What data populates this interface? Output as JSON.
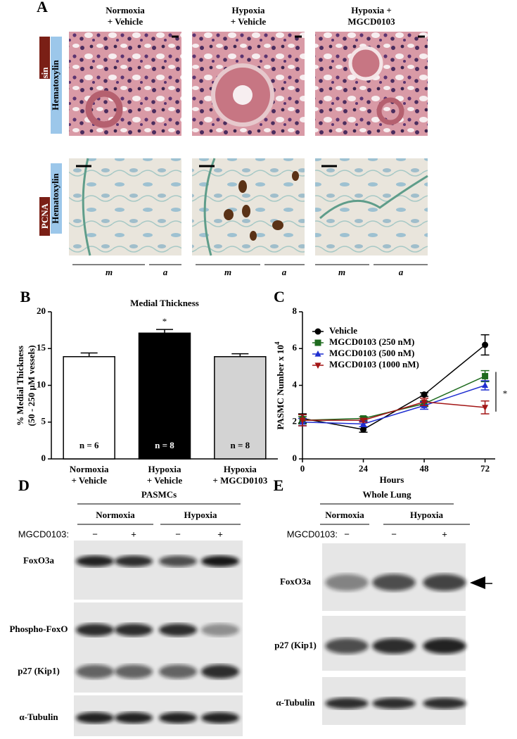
{
  "panel_a": {
    "letter": "A",
    "columns": [
      [
        "Normoxia",
        "+ Vehicle"
      ],
      [
        "Hypoxia",
        "+ Vehicle"
      ],
      [
        "Hypoxia +",
        "MGCD0103"
      ]
    ],
    "row_stains": [
      [
        "Eosin",
        "Hematoxylin"
      ],
      [
        "PCNA",
        "Hematoxylin"
      ]
    ],
    "layer_labels": [
      "m",
      "a"
    ]
  },
  "chart_data": [
    {
      "letter": "B",
      "type": "bar",
      "title": "Medial Thickness",
      "ylabel": [
        "% Medial Thickness",
        "(50 - 250 µM vessels)"
      ],
      "categories": [
        [
          "Normoxia",
          "+ Vehicle"
        ],
        [
          "Hypoxia",
          "+ Vehicle"
        ],
        [
          "Hypoxia",
          "+ MGCD0103"
        ]
      ],
      "values": [
        13.9,
        17.1,
        13.9
      ],
      "errors": [
        0.5,
        0.5,
        0.4
      ],
      "colors": [
        "#ffffff",
        "#000000",
        "#d3d3d3"
      ],
      "n_labels": [
        "n = 6",
        "n = 8",
        "n = 8"
      ],
      "annotation": "*",
      "ylim": [
        0,
        20
      ],
      "yticks": [
        0,
        5,
        10,
        15,
        20
      ]
    },
    {
      "letter": "C",
      "type": "line",
      "xlabel": "Hours",
      "ylabel": {
        "text": "PASMC Number x 10",
        "superscript": "4"
      },
      "x": [
        0,
        24,
        48,
        72
      ],
      "xlim": [
        0,
        76
      ],
      "xticks": [
        0,
        24,
        48,
        72
      ],
      "ylim": [
        0,
        8
      ],
      "yticks": [
        0,
        2,
        4,
        6,
        8
      ],
      "legend": "upper left",
      "annotation": "*",
      "series": [
        {
          "name": "Vehicle",
          "color": "#000000",
          "marker": "circle",
          "values": [
            2.2,
            1.6,
            3.5,
            6.2
          ],
          "errors": [
            0.25,
            0.15,
            0.1,
            0.55
          ]
        },
        {
          "name": "MGCD0103 (250 nM)",
          "color": "#1e6b1e",
          "marker": "square",
          "values": [
            2.1,
            2.2,
            3.0,
            4.5
          ],
          "errors": [
            0.2,
            0.1,
            0.15,
            0.3
          ]
        },
        {
          "name": "MGCD0103 (500 nM)",
          "color": "#1f2fd0",
          "marker": "triangle",
          "values": [
            2.0,
            1.9,
            2.9,
            4.0
          ],
          "errors": [
            0.2,
            0.15,
            0.2,
            0.25
          ]
        },
        {
          "name": "MGCD0103 (1000 nM)",
          "color": "#a31515",
          "marker": "triangle-down",
          "values": [
            2.1,
            2.1,
            3.1,
            2.8
          ],
          "errors": [
            0.3,
            0.1,
            0.2,
            0.35
          ]
        }
      ]
    }
  ],
  "panel_d": {
    "letter": "D",
    "title": "PASMCs",
    "groups": [
      "Normoxia",
      "Hypoxia"
    ],
    "treatment_label": "MGCD0103:",
    "treatment": [
      "−",
      "+",
      "−",
      "+"
    ],
    "rows": [
      "FoxO3a",
      "Phospho-FoxO",
      "p27 (Kip1)",
      "α-Tubulin"
    ]
  },
  "panel_e": {
    "letter": "E",
    "title": "Whole Lung",
    "groups": [
      "Normoxia",
      "Hypoxia"
    ],
    "treatment_label": "MGCD0103:",
    "treatment": [
      "−",
      "−",
      "+"
    ],
    "rows": [
      "FoxO3a",
      "p27 (Kip1)",
      "α-Tubulin"
    ]
  }
}
